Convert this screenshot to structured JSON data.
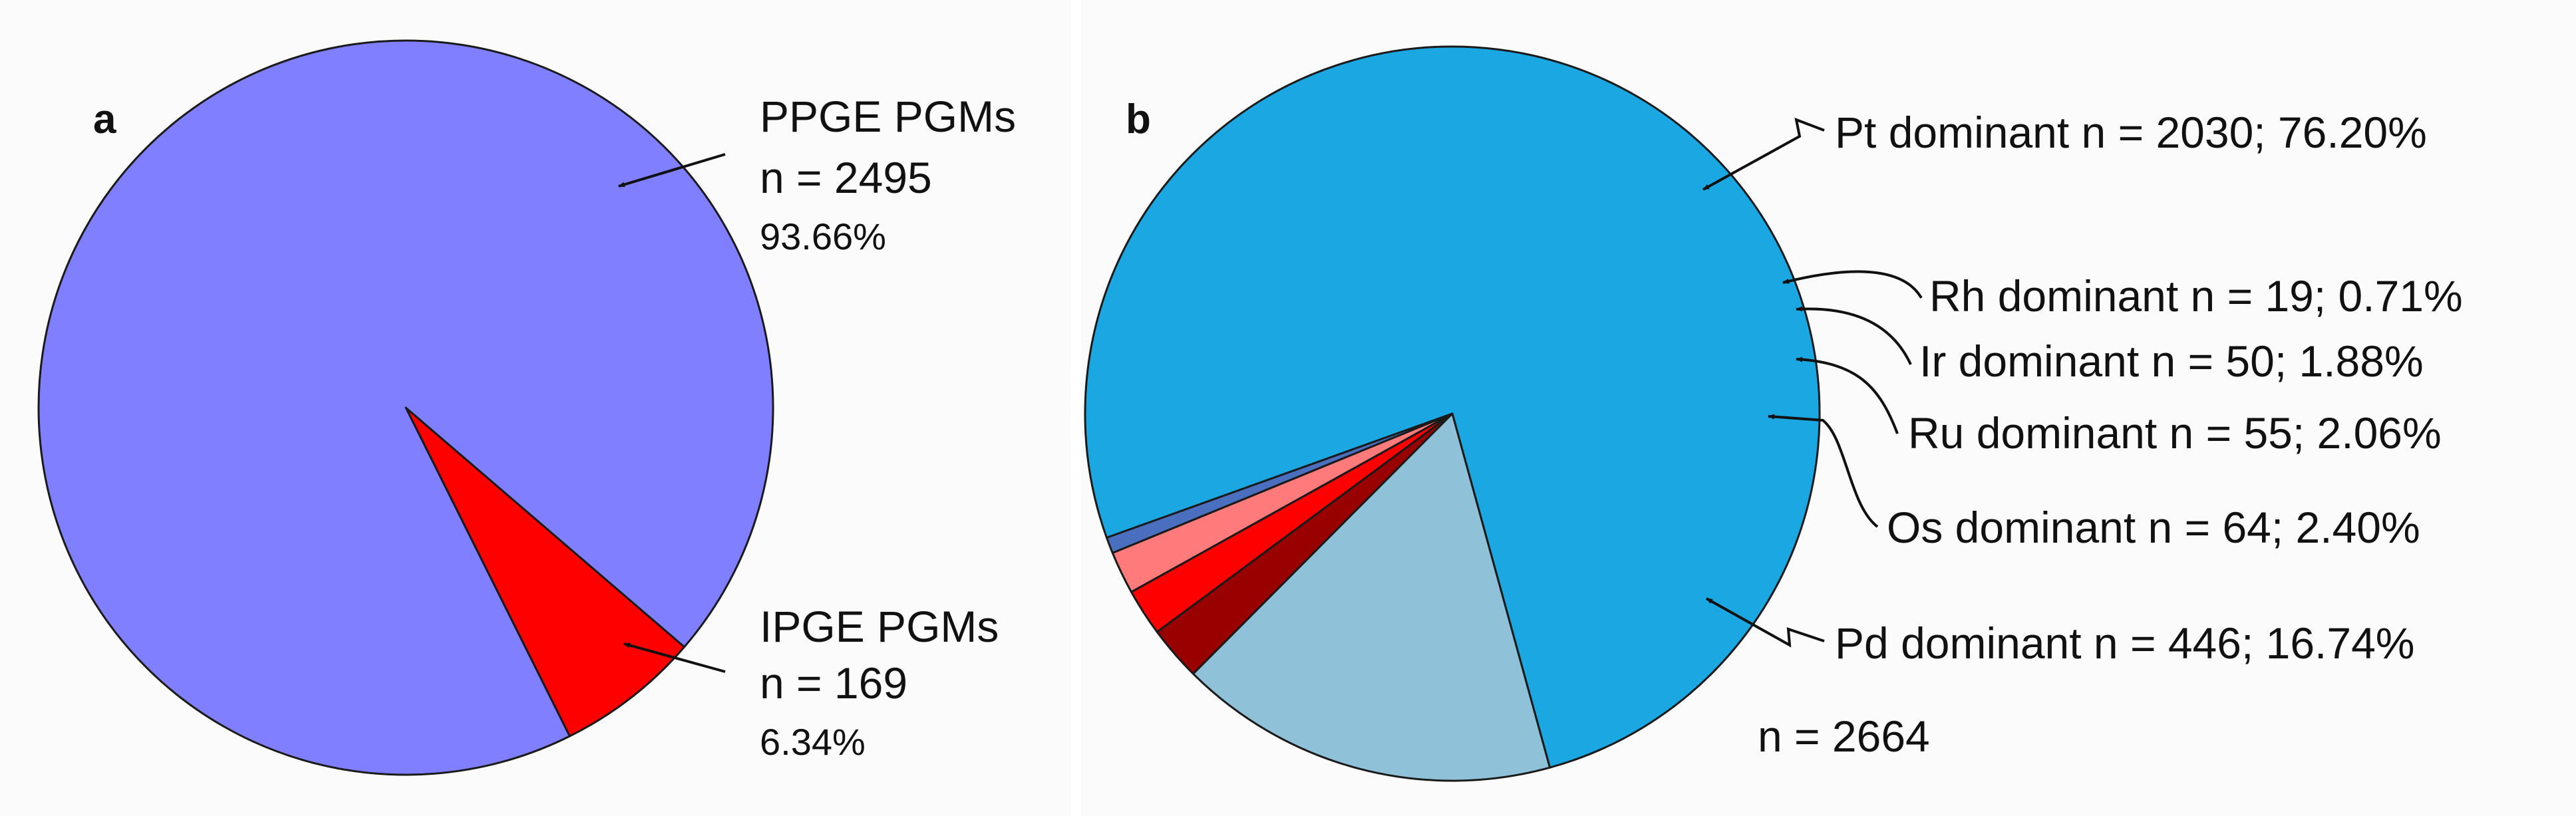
{
  "chart_data": [
    {
      "type": "pie",
      "panel_label": "a",
      "slices": [
        {
          "key": "ppge",
          "name": "PPGE PGMs",
          "count_text": "n = 2495",
          "percent_text": "93.66%",
          "value": 93.66,
          "color": "#7f7fff"
        },
        {
          "key": "ipge",
          "name": "IPGE PGMs",
          "count_text": "n = 169",
          "percent_text": "6.34%",
          "value": 6.34,
          "color": "#ff0000"
        }
      ]
    },
    {
      "type": "pie",
      "panel_label": "b",
      "total_text": "n = 2664",
      "slices": [
        {
          "key": "pt",
          "text": "Pt dominant  n = 2030; 76.20%",
          "value": 76.2,
          "color": "#1aa7e2"
        },
        {
          "key": "rh",
          "text": "Rh dominant  n = 19; 0.71%",
          "value": 0.71,
          "color": "#4a6fbf"
        },
        {
          "key": "ir",
          "text": "Ir dominant  n = 50; 1.88%",
          "value": 1.88,
          "color": "#ff7b7b"
        },
        {
          "key": "ru",
          "text": "Ru dominant  n = 55; 2.06%",
          "value": 2.06,
          "color": "#ff0000"
        },
        {
          "key": "os",
          "text": "Os dominant  n = 64; 2.40%",
          "value": 2.4,
          "color": "#990000"
        },
        {
          "key": "pd",
          "text": "Pd dominant  n = 446; 16.74%",
          "value": 16.74,
          "color": "#8fc2d9"
        }
      ]
    }
  ]
}
